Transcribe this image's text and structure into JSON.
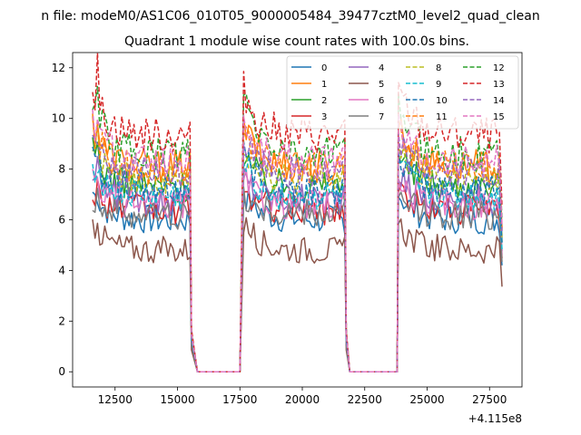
{
  "chart_data": {
    "type": "line",
    "suptitle": "n file: modeM0/AS1C06_010T05_9000005484_39477cztM0_level2_quad_clean",
    "title": "Quadrant 1 module wise count rates with 100.0s bins.",
    "xlabel": "",
    "ylabel": "",
    "x_offset_label": "+4.115e8",
    "xlim": [
      10800,
      28800
    ],
    "ylim": [
      -0.6,
      12.6
    ],
    "x_ticks": [
      12500,
      15000,
      17500,
      20000,
      22500,
      25000,
      27500
    ],
    "y_ticks": [
      0,
      2,
      4,
      6,
      8,
      10,
      12
    ],
    "grid": false,
    "legend": {
      "placement": "top-right",
      "columns": 4
    },
    "segments": [
      {
        "start": 11600,
        "end": 15500
      },
      {
        "start": 17650,
        "end": 21700
      },
      {
        "start": 23850,
        "end": 28000
      }
    ],
    "gaps": [
      {
        "start": 15800,
        "end": 17500
      },
      {
        "start": 21900,
        "end": 23800
      }
    ],
    "series": [
      {
        "name": "0",
        "color": "#1f77b4",
        "dash": "solid",
        "level": 6.0,
        "start": 7.1,
        "peak": 7.1
      },
      {
        "name": "1",
        "color": "#ff7f0e",
        "dash": "solid",
        "level": 8.1,
        "start": 9.8,
        "peak": 10.0
      },
      {
        "name": "2",
        "color": "#2ca02c",
        "dash": "solid",
        "level": 7.3,
        "start": 8.7,
        "peak": 9.0
      },
      {
        "name": "3",
        "color": "#d62728",
        "dash": "solid",
        "level": 6.4,
        "start": 7.2,
        "peak": 7.3
      },
      {
        "name": "4",
        "color": "#9467bd",
        "dash": "solid",
        "level": 6.8,
        "start": 7.7,
        "peak": 7.9
      },
      {
        "name": "5",
        "color": "#8c564b",
        "dash": "solid",
        "level": 4.8,
        "start": 5.9,
        "peak": 6.2
      },
      {
        "name": "6",
        "color": "#e377c2",
        "dash": "solid",
        "level": 6.6,
        "start": 7.6,
        "peak": 7.8
      },
      {
        "name": "7",
        "color": "#7f7f7f",
        "dash": "solid",
        "level": 6.2,
        "start": 6.9,
        "peak": 7.1
      },
      {
        "name": "8",
        "color": "#bcbd22",
        "dash": "dashed",
        "level": 7.6,
        "start": 9.0,
        "peak": 9.3
      },
      {
        "name": "9",
        "color": "#17becf",
        "dash": "dashed",
        "level": 6.9,
        "start": 8.2,
        "peak": 8.4
      },
      {
        "name": "10",
        "color": "#1f77b4",
        "dash": "dashed",
        "level": 7.2,
        "start": 8.6,
        "peak": 8.8
      },
      {
        "name": "11",
        "color": "#ff7f0e",
        "dash": "dashed",
        "level": 8.0,
        "start": 9.6,
        "peak": 9.9
      },
      {
        "name": "12",
        "color": "#2ca02c",
        "dash": "dashed",
        "level": 8.6,
        "start": 10.8,
        "peak": 11.0
      },
      {
        "name": "13",
        "color": "#d62728",
        "dash": "dashed",
        "level": 9.3,
        "start": 11.2,
        "peak": 12.0
      },
      {
        "name": "14",
        "color": "#9467bd",
        "dash": "dashed",
        "level": 7.8,
        "start": 9.2,
        "peak": 9.5
      },
      {
        "name": "15",
        "color": "#e377c2",
        "dash": "dashed",
        "level": 8.3,
        "start": 9.9,
        "peak": 10.2
      }
    ]
  }
}
